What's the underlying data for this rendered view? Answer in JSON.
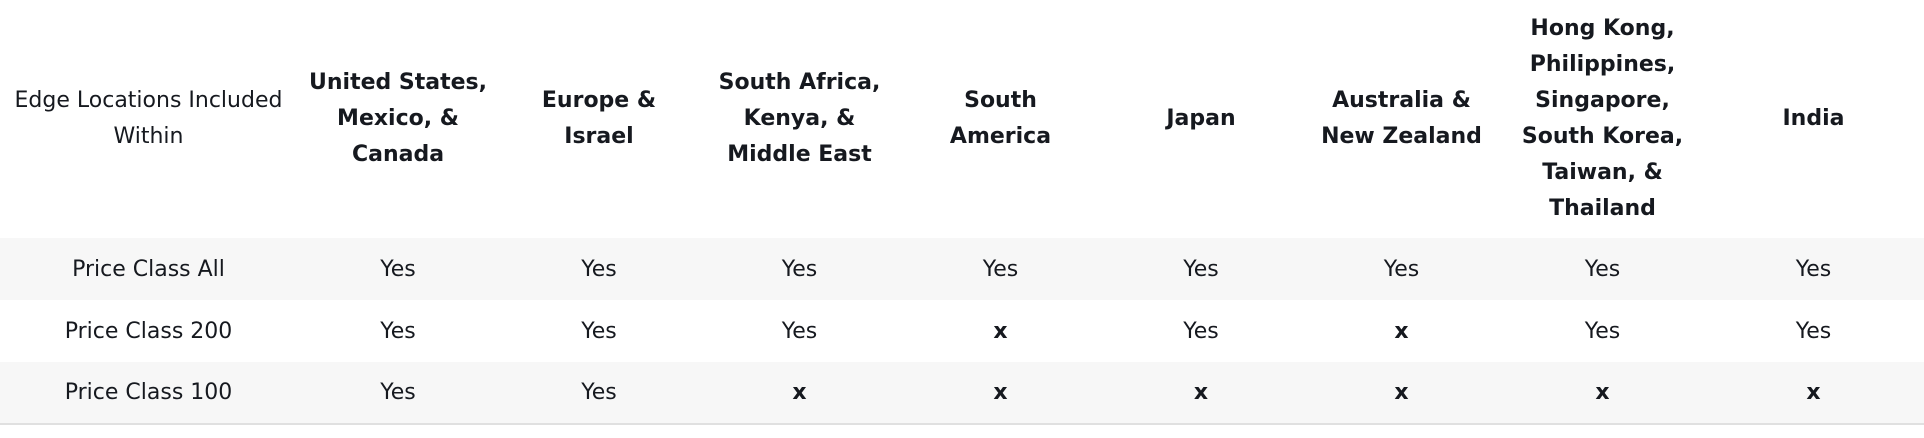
{
  "table": {
    "corner_header": "Edge Locations Included Within",
    "columns": [
      "United States, Mexico, & Canada",
      "Europe & Israel",
      "South Africa, Kenya, & Middle East",
      "South America",
      "Japan",
      "Australia & New Zealand",
      "Hong Kong, Philippines, Singapore, South Korea, Taiwan, & Thailand",
      "India"
    ],
    "rows": [
      {
        "label": "Price Class All",
        "cells": [
          "Yes",
          "Yes",
          "Yes",
          "Yes",
          "Yes",
          "Yes",
          "Yes",
          "Yes"
        ]
      },
      {
        "label": "Price Class 200",
        "cells": [
          "Yes",
          "Yes",
          "Yes",
          "x",
          "Yes",
          "x",
          "Yes",
          "Yes"
        ]
      },
      {
        "label": "Price Class 100",
        "cells": [
          "Yes",
          "Yes",
          "x",
          "x",
          "x",
          "x",
          "x",
          "x"
        ]
      }
    ]
  }
}
